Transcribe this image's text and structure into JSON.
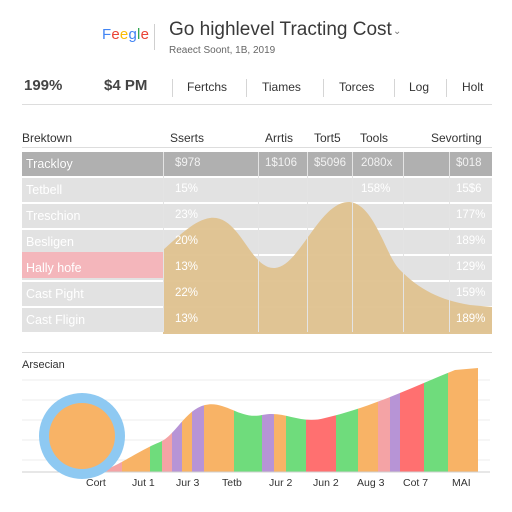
{
  "header": {
    "logo": [
      "F",
      "e",
      "e",
      "g",
      "l",
      "e"
    ],
    "logo_colors": [
      "#4285f4",
      "#ea4335",
      "#fbbc05",
      "#4285f4",
      "#34a853",
      "#ea4335"
    ],
    "title": "Go highlevel Tracting Cost",
    "title_icon": "⌄",
    "subtitle": "Reaect Soont, 1B, 2019"
  },
  "stats": {
    "percent": "199%",
    "amount": "$4 PM"
  },
  "tabs": [
    "Fertchs",
    "Tiames",
    "Torces",
    "Log",
    "Holt"
  ],
  "table": {
    "headers": [
      "Brektown",
      "Sserts",
      "Arrtis",
      "Tort5",
      "Tools",
      "Sevorting"
    ],
    "rows": [
      {
        "label": "Trackloy",
        "c1": "$978",
        "c2": "1$106",
        "c3": "$5096",
        "c4": "2080x",
        "c5": "$018"
      },
      {
        "label": "Tetbell",
        "c1": "15%",
        "c4": "158%",
        "c5": "15$6"
      },
      {
        "label": "Treschion",
        "c1": "23%",
        "c5": "177%"
      },
      {
        "label": "Besligen",
        "c1": "20%",
        "c5": "189%"
      },
      {
        "label": "Hally hofe",
        "c1": "13%",
        "c5": "129%"
      },
      {
        "label": "Cast Pight",
        "c1": "22%",
        "c5": "159%"
      },
      {
        "label": "Cast Fligin",
        "c1": "13%",
        "c5": "189%"
      }
    ]
  },
  "colors": {
    "header_row": "#b0b0b0",
    "row": "#e2e2e2",
    "highlight": "#f4b6bb",
    "area": "#dfc28f",
    "circle_ring": "#8ec9f2",
    "circle_fill": "#f8b366"
  },
  "bottom_chart": {
    "section_label": "Arsecian",
    "x_labels": [
      "Cort",
      "Jut 1",
      "Jur 3",
      "Tetb",
      "Jur 2",
      "Jun 2",
      "Aug 3",
      "Cot 7",
      "MAI"
    ]
  }
}
